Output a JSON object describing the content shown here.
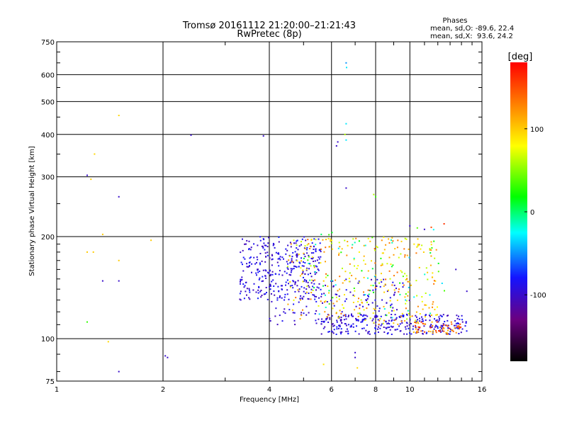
{
  "chart_data": {
    "type": "scatter",
    "title": "Tromsø 20161112 21:20:00–21:21:43",
    "subtitle": "RwPretec (8p)",
    "xlabel": "Frequency [MHz]",
    "ylabel": "Stationary phase Virtual Height [km]",
    "xscale": "log",
    "yscale": "log",
    "xlim": [
      1,
      16
    ],
    "ylim": [
      75,
      750
    ],
    "x_ticks": [
      1,
      2,
      4,
      6,
      8,
      10,
      16
    ],
    "x_tick_labels": [
      "1",
      "2",
      "4",
      "6",
      "8",
      "10",
      "16"
    ],
    "x_minor_ticks": [
      3,
      5,
      7,
      9,
      11,
      12,
      13,
      14,
      15
    ],
    "y_ticks": [
      75,
      100,
      200,
      300,
      400,
      500,
      600,
      750
    ],
    "y_tick_labels": [
      "75",
      "100",
      "200",
      "300",
      "400",
      "500",
      "600",
      "750"
    ],
    "grid": true,
    "phase_stats": {
      "heading": "Phases",
      "line_o": "mean, sd,O: -89.6, 22.4",
      "line_x": "mean, sd,X:  93.6, 24.2"
    },
    "colorbar": {
      "label": "[deg]",
      "range": [
        -180,
        180
      ],
      "ticks": [
        100,
        0,
        -100
      ],
      "tick_labels": [
        "100",
        "0",
        "-100"
      ],
      "colormap": [
        "#000000",
        "#6a0080",
        "#1414ff",
        "#00ffff",
        "#00ff00",
        "#ffff00",
        "#ff8000",
        "#ff0000"
      ]
    },
    "clusters": [
      {
        "x": [
          3.3,
          5.6
        ],
        "y": [
          130,
          200
        ],
        "phase": [
          -110,
          -75
        ],
        "n": 330
      },
      {
        "x": [
          5.6,
          14.5
        ],
        "y": [
          103,
          118
        ],
        "phase": [
          -110,
          -75
        ],
        "n": 280
      },
      {
        "x": [
          4.0,
          10.0
        ],
        "y": [
          110,
          150
        ],
        "phase": [
          -110,
          -80
        ],
        "n": 140
      },
      {
        "x": [
          4.5,
          12.0
        ],
        "y": [
          110,
          200
        ],
        "phase": [
          60,
          140
        ],
        "n": 300
      },
      {
        "x": [
          5.0,
          13.0
        ],
        "y": [
          115,
          210
        ],
        "phase": [
          -40,
          40
        ],
        "n": 70
      },
      {
        "x": [
          10.0,
          14.0
        ],
        "y": [
          103,
          112
        ],
        "phase": [
          100,
          170
        ],
        "n": 60
      }
    ],
    "points": [
      {
        "x": 1.22,
        "y": 303,
        "phase": -100
      },
      {
        "x": 1.25,
        "y": 295,
        "phase": 100
      },
      {
        "x": 1.28,
        "y": 350,
        "phase": 95
      },
      {
        "x": 1.27,
        "y": 180,
        "phase": 100
      },
      {
        "x": 1.22,
        "y": 180,
        "phase": 100
      },
      {
        "x": 1.35,
        "y": 203,
        "phase": 100
      },
      {
        "x": 1.35,
        "y": 148,
        "phase": -100
      },
      {
        "x": 1.22,
        "y": 112,
        "phase": 30
      },
      {
        "x": 1.4,
        "y": 98,
        "phase": 95
      },
      {
        "x": 1.5,
        "y": 455,
        "phase": 95
      },
      {
        "x": 1.5,
        "y": 262,
        "phase": -100
      },
      {
        "x": 1.5,
        "y": 170,
        "phase": 100
      },
      {
        "x": 1.5,
        "y": 148,
        "phase": -100
      },
      {
        "x": 1.5,
        "y": 80,
        "phase": -100
      },
      {
        "x": 1.85,
        "y": 195,
        "phase": 100
      },
      {
        "x": 2.03,
        "y": 89,
        "phase": -100
      },
      {
        "x": 2.06,
        "y": 88,
        "phase": -100
      },
      {
        "x": 2.4,
        "y": 398,
        "phase": -100
      },
      {
        "x": 3.85,
        "y": 396,
        "phase": -100
      },
      {
        "x": 6.2,
        "y": 370,
        "phase": -100
      },
      {
        "x": 6.25,
        "y": 380,
        "phase": -100
      },
      {
        "x": 6.55,
        "y": 400,
        "phase": 60
      },
      {
        "x": 6.6,
        "y": 385,
        "phase": -30
      },
      {
        "x": 6.6,
        "y": 430,
        "phase": -30
      },
      {
        "x": 6.6,
        "y": 650,
        "phase": -50
      },
      {
        "x": 6.62,
        "y": 630,
        "phase": -30
      },
      {
        "x": 6.6,
        "y": 278,
        "phase": -100
      },
      {
        "x": 7.9,
        "y": 266,
        "phase": 60
      },
      {
        "x": 8.0,
        "y": 262,
        "phase": 30
      },
      {
        "x": 5.7,
        "y": 84,
        "phase": 90
      },
      {
        "x": 7.0,
        "y": 91,
        "phase": -100
      },
      {
        "x": 7.0,
        "y": 88,
        "phase": -100
      },
      {
        "x": 7.1,
        "y": 82,
        "phase": 95
      },
      {
        "x": 10.0,
        "y": 215,
        "phase": -100
      },
      {
        "x": 10.5,
        "y": 212,
        "phase": 40
      },
      {
        "x": 11.0,
        "y": 210,
        "phase": -100
      },
      {
        "x": 11.5,
        "y": 213,
        "phase": 150
      },
      {
        "x": 12.5,
        "y": 218,
        "phase": 160
      },
      {
        "x": 14.5,
        "y": 138,
        "phase": -100
      },
      {
        "x": 13.5,
        "y": 160,
        "phase": -100
      }
    ]
  }
}
